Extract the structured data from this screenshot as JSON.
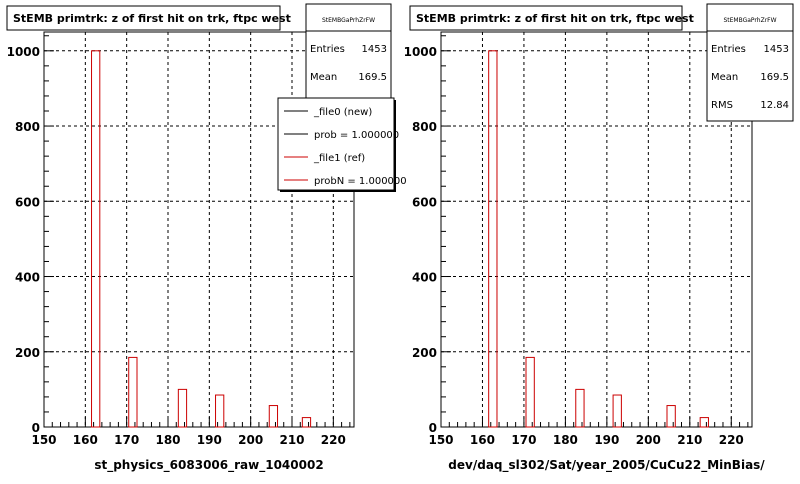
{
  "chart_data": [
    {
      "type": "bar",
      "title": "StEMB primtrk: z of first hit on trk, ftpc west",
      "xlabel": "st_physics_6083006_raw_1040002",
      "ylabel": "",
      "xlim": [
        150,
        225
      ],
      "ylim": [
        0,
        1050
      ],
      "grid": true,
      "x_ticks": [
        150,
        160,
        170,
        180,
        190,
        200,
        210,
        220
      ],
      "y_ticks": [
        0,
        200,
        400,
        600,
        800,
        1000
      ],
      "stats": {
        "name": "StEMBGaPrhZrFW",
        "entries_label": "Entries",
        "entries": "1453",
        "mean_label": "Mean",
        "mean": "169.5"
      },
      "legend": {
        "position": "top-right",
        "entries": [
          {
            "label": "_file0 (new)",
            "color": "#000000"
          },
          {
            "label": "prob = 1.000000",
            "color": "#000000"
          },
          {
            "label": "_file1 (ref)",
            "color": "#cc0000"
          },
          {
            "label": "probN = 1.000000",
            "color": "#cc0000"
          }
        ]
      },
      "series": [
        {
          "color": "#cc0000",
          "bins": [
            {
              "x": 162.5,
              "y": 1000
            },
            {
              "x": 171.5,
              "y": 185
            },
            {
              "x": 183.5,
              "y": 100
            },
            {
              "x": 192.5,
              "y": 85
            },
            {
              "x": 205.5,
              "y": 57
            },
            {
              "x": 213.5,
              "y": 25
            }
          ]
        }
      ]
    },
    {
      "type": "bar",
      "title": "StEMB primtrk: z of first hit on trk, ftpc west",
      "xlabel": "dev/daq_sl302/Sat/year_2005/CuCu22_MinBias/",
      "ylabel": "",
      "xlim": [
        150,
        225
      ],
      "ylim": [
        0,
        1050
      ],
      "grid": true,
      "x_ticks": [
        150,
        160,
        170,
        180,
        190,
        200,
        210,
        220
      ],
      "y_ticks": [
        0,
        200,
        400,
        600,
        800,
        1000
      ],
      "stats": {
        "name": "StEMBGaPrhZrFW",
        "entries_label": "Entries",
        "entries": "1453",
        "mean_label": "Mean",
        "mean": "169.5",
        "rms_label": "RMS",
        "rms": "12.84"
      },
      "series": [
        {
          "color": "#cc0000",
          "bins": [
            {
              "x": 162.5,
              "y": 1000
            },
            {
              "x": 171.5,
              "y": 185
            },
            {
              "x": 183.5,
              "y": 100
            },
            {
              "x": 192.5,
              "y": 85
            },
            {
              "x": 205.5,
              "y": 57
            },
            {
              "x": 213.5,
              "y": 25
            }
          ]
        }
      ]
    }
  ]
}
